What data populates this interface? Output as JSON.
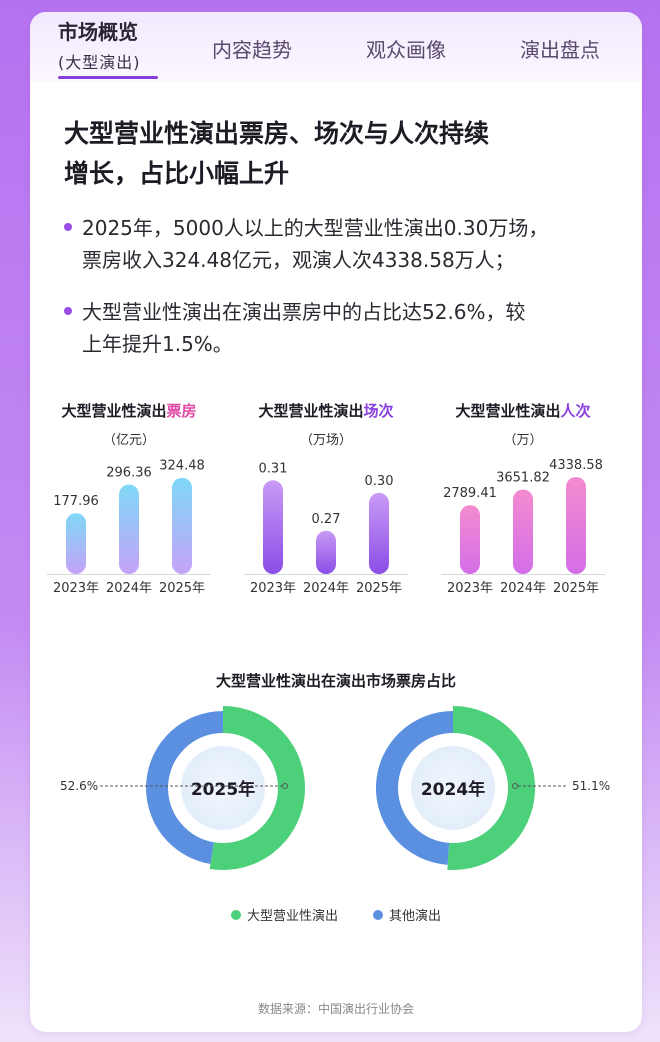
{
  "tabs": [
    {
      "label": "市场概览",
      "sublabel": "(大型演出)"
    },
    {
      "label": "内容趋势"
    },
    {
      "label": "观众画像"
    },
    {
      "label": "演出盘点"
    }
  ],
  "headline": [
    "大型营业性演出票房、场次与人次持续",
    "增长，占比小幅上升"
  ],
  "bullets": [
    [
      "2025年，5000人以上的大型营业性演出0.30万场，",
      "票房收入324.48亿元，观演人次4338.58万人；"
    ],
    [
      "大型营业性演出在演出票房中的占比达52.6%，较",
      "上年提升1.5%。"
    ]
  ],
  "chart_data": [
    {
      "type": "bar",
      "title_prefix": "大型营业性演出",
      "title_highlight": "票房",
      "unit": "（亿元）",
      "categories": [
        "2023年",
        "2024年",
        "2025年"
      ],
      "values": [
        177.96,
        296.36,
        324.48
      ],
      "value_labels": [
        "177.96",
        "296.36",
        "324.48"
      ],
      "ylim": [
        0,
        340
      ],
      "colors": [
        "#7fd8f7",
        "#c4a3f7"
      ],
      "highlight_color": "#e04aa6"
    },
    {
      "type": "bar",
      "title_prefix": "大型营业性演出",
      "title_highlight": "场次",
      "unit": "（万场）",
      "categories": [
        "2023年",
        "2024年",
        "2025年"
      ],
      "values": [
        0.31,
        0.27,
        0.3
      ],
      "value_labels": [
        "0.31",
        "0.27",
        "0.30"
      ],
      "ylim": [
        0.25,
        0.315
      ],
      "colors": [
        "#c99af5",
        "#8a4ee6"
      ],
      "highlight_color": "#8a3fe0"
    },
    {
      "type": "bar",
      "title_prefix": "大型营业性演出",
      "title_highlight": "人次",
      "unit": "（万）",
      "categories": [
        "2023年",
        "2024年",
        "2025年"
      ],
      "values": [
        2789.41,
        3651.82,
        4338.58
      ],
      "value_labels": [
        "2789.41",
        "3651.82",
        "4338.58"
      ],
      "ylim": [
        0,
        4500
      ],
      "colors": [
        "#f48bd0",
        "#d46ee8"
      ],
      "highlight_color": "#8a3fe0"
    },
    {
      "type": "pie",
      "title": "大型营业性演出在演出市场票房占比",
      "legend": [
        "大型营业性演出",
        "其他演出"
      ],
      "colors": [
        "#4cd07a",
        "#5b8fe0"
      ],
      "donuts": [
        {
          "center_label": "2025年",
          "large_share": 52.6,
          "label": "52.6%"
        },
        {
          "center_label": "2024年",
          "large_share": 51.1,
          "label": "51.1%"
        }
      ]
    }
  ],
  "source": "数据来源：中国演出行业协会"
}
